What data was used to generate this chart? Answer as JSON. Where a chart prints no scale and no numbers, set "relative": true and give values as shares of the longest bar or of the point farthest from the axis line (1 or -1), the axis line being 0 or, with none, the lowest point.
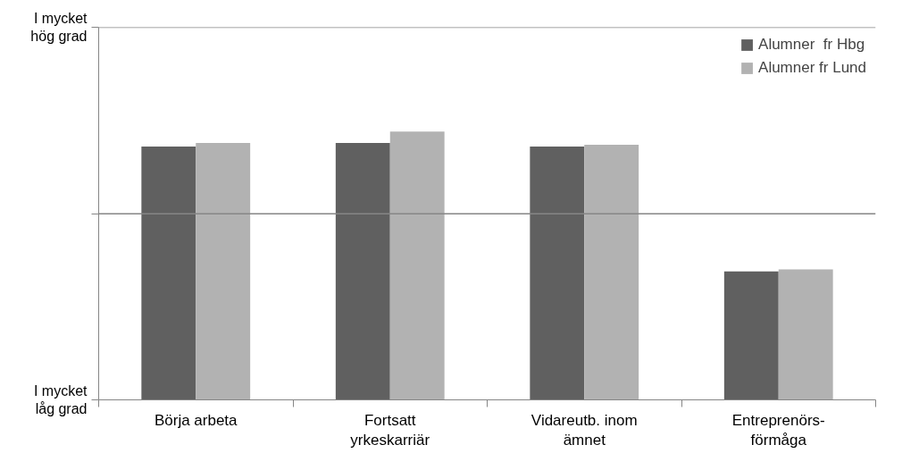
{
  "chart_data": {
    "type": "bar",
    "relative": true,
    "categories": [
      "Börja arbeta",
      "Fortsatt yrkeskarriär",
      "Vidareutb. inom ämnet",
      "Entreprenörs-förmåga"
    ],
    "series": [
      {
        "name": "Alumner  fr Hbg",
        "color": "#606060",
        "values": [
          0.944,
          0.958,
          0.944,
          0.479
        ]
      },
      {
        "name": "Alumner fr Lund",
        "color": "#b2b2b2",
        "values": [
          0.958,
          1,
          0.951,
          0.486
        ]
      }
    ],
    "annotations": [
      "I mycket låg grad",
      "I mycket hög grad"
    ],
    "ref_lines": [
      {
        "axis": "y",
        "value": 0.694,
        "color": "#868686"
      },
      {
        "axis": "y",
        "value": 1.389,
        "color": "#868686"
      }
    ],
    "legend": "top right"
  }
}
